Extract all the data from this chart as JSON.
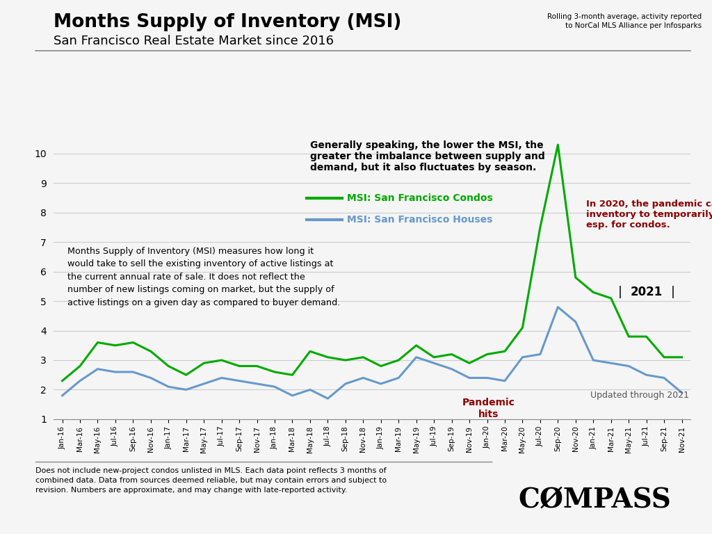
{
  "title": "Months Supply of Inventory (MSI)",
  "subtitle": "San Francisco Real Estate Market since 2016",
  "rolling_note": "Rolling 3-month average, activity reported\nto NorCal MLS Alliance per Infosparks",
  "ylim": [
    1,
    10.5
  ],
  "yticks": [
    1,
    2,
    3,
    4,
    5,
    6,
    7,
    8,
    9,
    10
  ],
  "condo_color": "#00aa00",
  "house_color": "#6699cc",
  "background_color": "#f5f5f5",
  "footnote": "Does not include new-project condos unlisted in MLS. Each data point reflects 3 months of\ncombined data. Data from sources deemed reliable, but may contain errors and subject to\nrevision. Numbers are approximate, and may change with late-reported activity.",
  "x_labels": [
    "Jan-16",
    "Mar-16",
    "May-16",
    "Jul-16",
    "Sep-16",
    "Nov-16",
    "Jan-17",
    "Mar-17",
    "May-17",
    "Jul-17",
    "Sep-17",
    "Nov-17",
    "Jan-18",
    "Mar-18",
    "May-18",
    "Jul-18",
    "Sep-18",
    "Nov-18",
    "Jan-19",
    "Mar-19",
    "May-19",
    "Jul-19",
    "Sep-19",
    "Nov-19",
    "Jan-20",
    "Mar-20",
    "May-20",
    "Jul-20",
    "Sep-20",
    "Nov-20",
    "Jan-21",
    "Mar-21",
    "May-21",
    "Jul-21",
    "Sep-21",
    "Nov-21"
  ],
  "condos": [
    2.3,
    2.8,
    3.6,
    3.5,
    3.6,
    3.3,
    2.8,
    2.5,
    2.9,
    3.0,
    2.8,
    2.8,
    2.6,
    2.5,
    3.3,
    3.1,
    3.0,
    3.1,
    2.8,
    3.0,
    3.5,
    3.1,
    3.2,
    2.9,
    3.2,
    3.3,
    4.1,
    7.5,
    10.3,
    5.8,
    5.3,
    5.1,
    3.8,
    3.8,
    3.1,
    3.1
  ],
  "houses": [
    1.8,
    2.3,
    2.7,
    2.6,
    2.6,
    2.4,
    2.1,
    2.0,
    2.2,
    2.4,
    2.3,
    2.2,
    2.1,
    1.8,
    2.0,
    1.7,
    2.2,
    2.4,
    2.2,
    2.4,
    3.1,
    2.9,
    2.7,
    2.4,
    2.4,
    2.3,
    3.1,
    3.2,
    4.8,
    4.3,
    3.0,
    2.9,
    2.8,
    2.5,
    2.4,
    1.9
  ]
}
